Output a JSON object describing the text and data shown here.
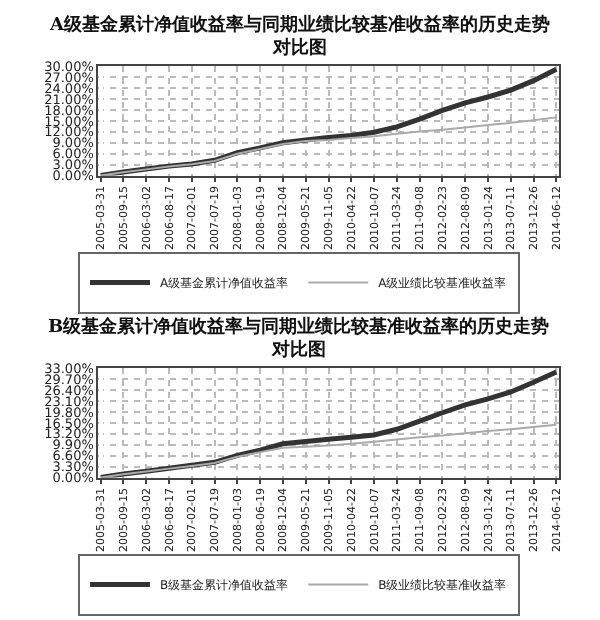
{
  "chart_data": [
    {
      "type": "line",
      "title": "A级基金累计净值收益率与同期业绩比较基准收益率的历史走势对比图",
      "categories": [
        "2005-03-31",
        "2005-09-15",
        "2006-03-02",
        "2006-08-17",
        "2007-02-01",
        "2007-07-19",
        "2008-01-03",
        "2008-06-19",
        "2008-12-04",
        "2009-05-21",
        "2009-11-05",
        "2010-04-22",
        "2010-10-07",
        "2011-03-24",
        "2011-09-08",
        "2012-02-23",
        "2012-08-09",
        "2013-01-24",
        "2013-07-11",
        "2013-12-26",
        "2014-06-12"
      ],
      "series": [
        {
          "name": "A级基金累计净值收益率",
          "color": "#333333",
          "values": [
            0,
            1.0,
            1.8,
            2.6,
            3.2,
            4.2,
            6.3,
            7.6,
            9.0,
            9.8,
            10.5,
            11.0,
            11.9,
            13.4,
            15.5,
            17.9,
            20.0,
            21.6,
            23.5,
            26.1,
            29.2
          ]
        },
        {
          "name": "A级业绩比较基准收益率",
          "color": "#aaaaaa",
          "values": [
            0,
            0.9,
            1.7,
            2.5,
            3.1,
            4.0,
            6.0,
            7.3,
            8.7,
            9.5,
            9.8,
            10.3,
            10.8,
            11.5,
            12.1,
            12.6,
            13.2,
            13.9,
            14.5,
            15.2,
            16.0
          ]
        }
      ],
      "ylim": [
        0,
        30
      ],
      "yticks": [
        {
          "value": 0,
          "label": "0.00%"
        },
        {
          "value": 3,
          "label": "3.00%"
        },
        {
          "value": 6,
          "label": "6.00%"
        },
        {
          "value": 9,
          "label": "9.00%"
        },
        {
          "value": 12,
          "label": "12.00%"
        },
        {
          "value": 15,
          "label": "15.00%"
        },
        {
          "value": 18,
          "label": "18.00%"
        },
        {
          "value": 21,
          "label": "21.00%"
        },
        {
          "value": 24,
          "label": "24.00%"
        },
        {
          "value": 27,
          "label": "27.00%"
        },
        {
          "value": 30,
          "label": "30.00%"
        }
      ],
      "grid": true,
      "legend": "bottom"
    },
    {
      "type": "line",
      "title": "B级基金累计净值收益率与同期业绩比较基准收益率的历史走势对比图",
      "categories": [
        "2005-03-31",
        "2005-09-15",
        "2006-03-02",
        "2006-08-17",
        "2007-02-01",
        "2007-07-19",
        "2008-01-03",
        "2008-06-19",
        "2008-12-04",
        "2009-05-21",
        "2009-11-05",
        "2010-04-22",
        "2010-10-07",
        "2011-03-24",
        "2011-09-08",
        "2012-02-23",
        "2012-08-09",
        "2013-01-24",
        "2013-07-11",
        "2013-12-26",
        "2014-06-12"
      ],
      "series": [
        {
          "name": "B级基金累计净值收益率",
          "color": "#333333",
          "values": [
            0,
            1.1,
            1.9,
            2.8,
            3.7,
            4.6,
            6.7,
            8.3,
            10.2,
            10.9,
            11.6,
            12.2,
            12.9,
            14.6,
            17.1,
            19.6,
            22.0,
            23.8,
            25.9,
            28.8,
            31.9
          ]
        },
        {
          "name": "B级业绩比较基准收益率",
          "color": "#aaaaaa",
          "values": [
            0,
            1.0,
            1.8,
            2.7,
            3.5,
            4.4,
            6.3,
            7.7,
            9.0,
            9.3,
            9.7,
            10.2,
            10.8,
            11.5,
            12.2,
            12.7,
            13.4,
            14.1,
            14.6,
            15.3,
            16.0
          ]
        }
      ],
      "ylim": [
        0,
        33
      ],
      "yticks": [
        {
          "value": 0,
          "label": "0.00%"
        },
        {
          "value": 3.3,
          "label": "3.30%"
        },
        {
          "value": 6.6,
          "label": "6.60%"
        },
        {
          "value": 9.9,
          "label": "9.90%"
        },
        {
          "value": 13.2,
          "label": "13.20%"
        },
        {
          "value": 16.5,
          "label": "16.50%"
        },
        {
          "value": 19.8,
          "label": "19.80%"
        },
        {
          "value": 23.1,
          "label": "23.10%"
        },
        {
          "value": 26.4,
          "label": "26.40%"
        },
        {
          "value": 29.7,
          "label": "29.70%"
        },
        {
          "value": 33,
          "label": "33.00%"
        }
      ],
      "grid": true,
      "legend": "bottom"
    }
  ]
}
